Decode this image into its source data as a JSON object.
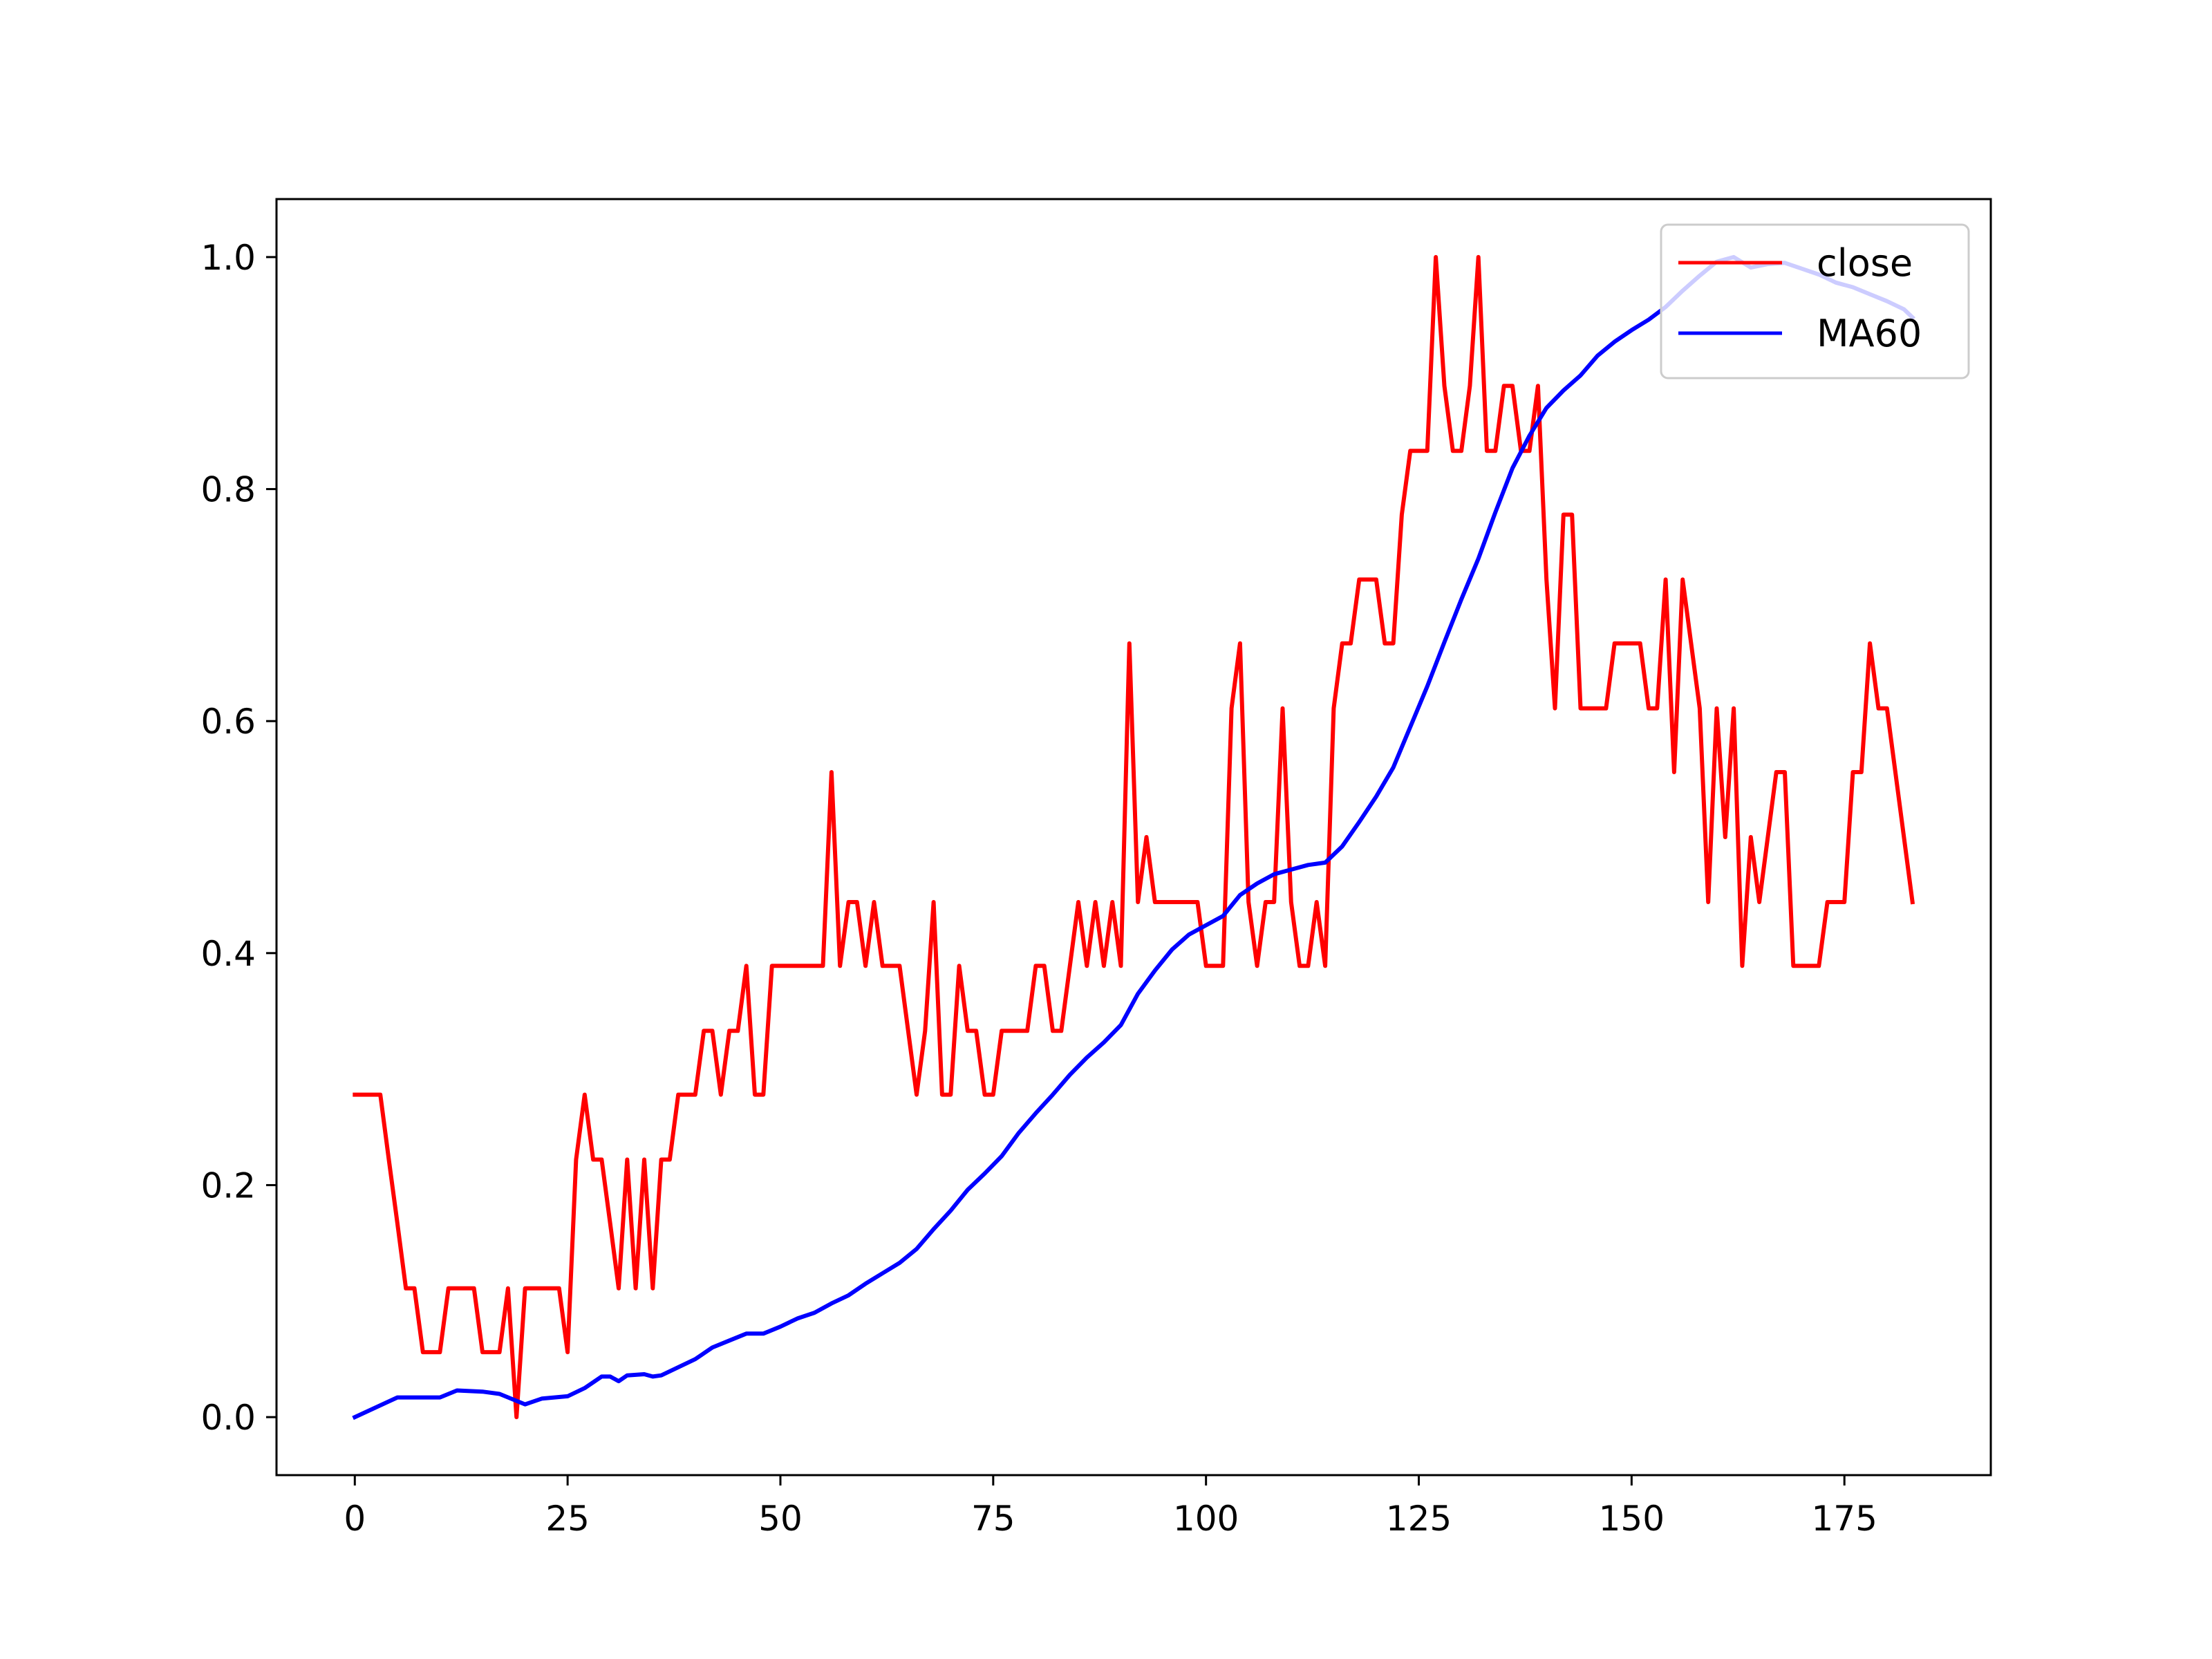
{
  "chart_data": {
    "type": "line",
    "title": "",
    "xlabel": "",
    "ylabel": "",
    "xlim": [
      -9.2,
      192.2
    ],
    "ylim": [
      -0.05,
      1.05
    ],
    "xticks": [
      0,
      25,
      50,
      75,
      100,
      125,
      150,
      175
    ],
    "yticks": [
      0.0,
      0.2,
      0.4,
      0.6,
      0.8,
      1.0
    ],
    "xtick_labels": [
      "0",
      "25",
      "50",
      "75",
      "100",
      "125",
      "150",
      "175"
    ],
    "ytick_labels": [
      "0.0",
      "0.2",
      "0.4",
      "0.6",
      "0.8",
      "1.0"
    ],
    "grid": false,
    "legend": "upper right",
    "series": [
      {
        "name": "close",
        "color": "#ff0000",
        "points": [
          [
            0,
            0.278
          ],
          [
            3,
            0.278
          ],
          [
            4,
            0.222
          ],
          [
            5,
            0.167
          ],
          [
            6,
            0.111
          ],
          [
            7,
            0.111
          ],
          [
            8,
            0.056
          ],
          [
            10,
            0.056
          ],
          [
            11,
            0.111
          ],
          [
            14,
            0.111
          ],
          [
            15,
            0.056
          ],
          [
            17,
            0.056
          ],
          [
            18,
            0.111
          ],
          [
            19,
            0.0
          ],
          [
            20,
            0.111
          ],
          [
            24,
            0.111
          ],
          [
            25,
            0.056
          ],
          [
            26,
            0.222
          ],
          [
            27,
            0.278
          ],
          [
            28,
            0.222
          ],
          [
            29,
            0.222
          ],
          [
            30,
            0.167
          ],
          [
            31,
            0.111
          ],
          [
            32,
            0.222
          ],
          [
            33,
            0.111
          ],
          [
            34,
            0.222
          ],
          [
            35,
            0.111
          ],
          [
            36,
            0.222
          ],
          [
            37,
            0.222
          ],
          [
            38,
            0.278
          ],
          [
            40,
            0.278
          ],
          [
            41,
            0.333
          ],
          [
            42,
            0.333
          ],
          [
            43,
            0.278
          ],
          [
            44,
            0.333
          ],
          [
            45,
            0.333
          ],
          [
            46,
            0.389
          ],
          [
            47,
            0.278
          ],
          [
            48,
            0.278
          ],
          [
            49,
            0.389
          ],
          [
            55,
            0.389
          ],
          [
            56,
            0.556
          ],
          [
            57,
            0.389
          ],
          [
            58,
            0.444
          ],
          [
            59,
            0.444
          ],
          [
            60,
            0.389
          ],
          [
            61,
            0.444
          ],
          [
            62,
            0.389
          ],
          [
            64,
            0.389
          ],
          [
            66,
            0.278
          ],
          [
            67,
            0.333
          ],
          [
            68,
            0.444
          ],
          [
            69,
            0.278
          ],
          [
            70,
            0.278
          ],
          [
            71,
            0.389
          ],
          [
            72,
            0.333
          ],
          [
            73,
            0.333
          ],
          [
            74,
            0.278
          ],
          [
            75,
            0.278
          ],
          [
            76,
            0.333
          ],
          [
            79,
            0.333
          ],
          [
            80,
            0.389
          ],
          [
            81,
            0.389
          ],
          [
            82,
            0.333
          ],
          [
            83,
            0.333
          ],
          [
            85,
            0.444
          ],
          [
            86,
            0.389
          ],
          [
            87,
            0.444
          ],
          [
            88,
            0.389
          ],
          [
            89,
            0.444
          ],
          [
            90,
            0.389
          ],
          [
            91,
            0.667
          ],
          [
            92,
            0.444
          ],
          [
            93,
            0.5
          ],
          [
            94,
            0.444
          ],
          [
            99,
            0.444
          ],
          [
            100,
            0.389
          ],
          [
            102,
            0.389
          ],
          [
            103,
            0.611
          ],
          [
            104,
            0.667
          ],
          [
            105,
            0.444
          ],
          [
            106,
            0.389
          ],
          [
            107,
            0.444
          ],
          [
            108,
            0.444
          ],
          [
            109,
            0.611
          ],
          [
            110,
            0.444
          ],
          [
            111,
            0.389
          ],
          [
            112,
            0.389
          ],
          [
            113,
            0.444
          ],
          [
            114,
            0.389
          ],
          [
            115,
            0.611
          ],
          [
            116,
            0.667
          ],
          [
            117,
            0.667
          ],
          [
            118,
            0.722
          ],
          [
            120,
            0.722
          ],
          [
            121,
            0.667
          ],
          [
            122,
            0.667
          ],
          [
            123,
            0.778
          ],
          [
            124,
            0.833
          ],
          [
            126,
            0.833
          ],
          [
            127,
            1.0
          ],
          [
            128,
            0.889
          ],
          [
            129,
            0.833
          ],
          [
            130,
            0.833
          ],
          [
            131,
            0.889
          ],
          [
            132,
            1.0
          ],
          [
            133,
            0.833
          ],
          [
            134,
            0.833
          ],
          [
            135,
            0.889
          ],
          [
            136,
            0.889
          ],
          [
            137,
            0.833
          ],
          [
            138,
            0.833
          ],
          [
            139,
            0.889
          ],
          [
            140,
            0.722
          ],
          [
            141,
            0.611
          ],
          [
            142,
            0.778
          ],
          [
            143,
            0.778
          ],
          [
            144,
            0.611
          ],
          [
            147,
            0.611
          ],
          [
            148,
            0.667
          ],
          [
            151,
            0.667
          ],
          [
            152,
            0.611
          ],
          [
            153,
            0.611
          ],
          [
            154,
            0.722
          ],
          [
            155,
            0.556
          ],
          [
            156,
            0.722
          ],
          [
            158,
            0.611
          ],
          [
            159,
            0.444
          ],
          [
            160,
            0.611
          ],
          [
            161,
            0.5
          ],
          [
            162,
            0.611
          ],
          [
            163,
            0.389
          ],
          [
            164,
            0.5
          ],
          [
            165,
            0.444
          ],
          [
            167,
            0.556
          ],
          [
            168,
            0.556
          ],
          [
            169,
            0.389
          ],
          [
            172,
            0.389
          ],
          [
            173,
            0.444
          ],
          [
            175,
            0.444
          ],
          [
            176,
            0.556
          ],
          [
            177,
            0.556
          ],
          [
            178,
            0.667
          ],
          [
            179,
            0.611
          ],
          [
            180,
            0.611
          ],
          [
            183,
            0.444
          ]
        ]
      },
      {
        "name": "MA60",
        "color": "#0000ff",
        "points": [
          [
            0,
            0.0
          ],
          [
            5,
            0.017
          ],
          [
            10,
            0.017
          ],
          [
            12,
            0.023
          ],
          [
            15,
            0.022
          ],
          [
            17,
            0.02
          ],
          [
            20,
            0.011
          ],
          [
            22,
            0.016
          ],
          [
            25,
            0.018
          ],
          [
            27,
            0.025
          ],
          [
            29,
            0.035
          ],
          [
            30,
            0.035
          ],
          [
            31,
            0.031
          ],
          [
            32,
            0.036
          ],
          [
            34,
            0.037
          ],
          [
            35,
            0.035
          ],
          [
            36,
            0.036
          ],
          [
            38,
            0.043
          ],
          [
            40,
            0.05
          ],
          [
            42,
            0.06
          ],
          [
            44,
            0.066
          ],
          [
            46,
            0.072
          ],
          [
            48,
            0.072
          ],
          [
            50,
            0.078
          ],
          [
            52,
            0.085
          ],
          [
            54,
            0.09
          ],
          [
            56,
            0.098
          ],
          [
            58,
            0.105
          ],
          [
            60,
            0.115
          ],
          [
            62,
            0.124
          ],
          [
            64,
            0.133
          ],
          [
            66,
            0.145
          ],
          [
            68,
            0.162
          ],
          [
            70,
            0.178
          ],
          [
            72,
            0.196
          ],
          [
            74,
            0.21
          ],
          [
            76,
            0.225
          ],
          [
            78,
            0.245
          ],
          [
            80,
            0.262
          ],
          [
            82,
            0.278
          ],
          [
            84,
            0.295
          ],
          [
            86,
            0.31
          ],
          [
            88,
            0.323
          ],
          [
            90,
            0.338
          ],
          [
            92,
            0.365
          ],
          [
            94,
            0.385
          ],
          [
            96,
            0.403
          ],
          [
            98,
            0.416
          ],
          [
            100,
            0.424
          ],
          [
            102,
            0.432
          ],
          [
            104,
            0.45
          ],
          [
            106,
            0.46
          ],
          [
            108,
            0.468
          ],
          [
            110,
            0.472
          ],
          [
            112,
            0.476
          ],
          [
            114,
            0.478
          ],
          [
            116,
            0.492
          ],
          [
            118,
            0.513
          ],
          [
            120,
            0.535
          ],
          [
            122,
            0.56
          ],
          [
            124,
            0.595
          ],
          [
            126,
            0.63
          ],
          [
            128,
            0.668
          ],
          [
            130,
            0.705
          ],
          [
            132,
            0.74
          ],
          [
            134,
            0.78
          ],
          [
            136,
            0.818
          ],
          [
            138,
            0.846
          ],
          [
            140,
            0.87
          ],
          [
            142,
            0.885
          ],
          [
            144,
            0.898
          ],
          [
            146,
            0.915
          ],
          [
            148,
            0.927
          ],
          [
            150,
            0.937
          ],
          [
            152,
            0.946
          ],
          [
            154,
            0.957
          ],
          [
            156,
            0.971
          ],
          [
            158,
            0.984
          ],
          [
            160,
            0.996
          ],
          [
            162,
            1.0
          ],
          [
            164,
            0.991
          ],
          [
            166,
            0.994
          ],
          [
            168,
            0.995
          ],
          [
            170,
            0.99
          ],
          [
            172,
            0.985
          ],
          [
            174,
            0.978
          ],
          [
            176,
            0.974
          ],
          [
            178,
            0.968
          ],
          [
            180,
            0.962
          ],
          [
            182,
            0.955
          ],
          [
            183,
            0.948
          ]
        ]
      }
    ]
  }
}
